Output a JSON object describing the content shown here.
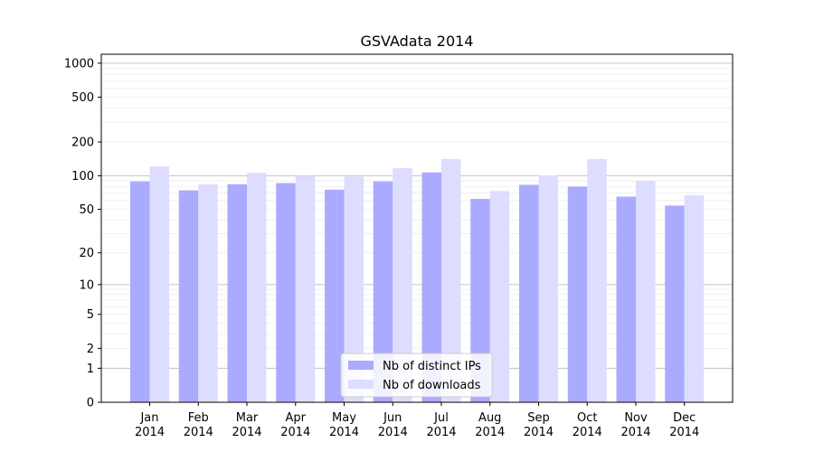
{
  "chart_data": {
    "type": "bar",
    "title": "GSVAdata 2014",
    "xlabel": "",
    "ylabel": "",
    "yscale": "log1p",
    "ylim": [
      0,
      1200
    ],
    "yticks": [
      0,
      1,
      2,
      5,
      10,
      20,
      50,
      100,
      200,
      500,
      1000
    ],
    "categories": [
      "Jan\n2014",
      "Feb\n2014",
      "Mar\n2014",
      "Apr\n2014",
      "May\n2014",
      "Jun\n2014",
      "Jul\n2014",
      "Aug\n2014",
      "Sep\n2014",
      "Oct\n2014",
      "Nov\n2014",
      "Dec\n2014"
    ],
    "series": [
      {
        "name": "Nb of distinct IPs",
        "color": "#aaaaff",
        "values": [
          89,
          74,
          84,
          86,
          75,
          89,
          107,
          62,
          83,
          80,
          65,
          54
        ]
      },
      {
        "name": "Nb of downloads",
        "color": "#ddddff",
        "values": [
          121,
          84,
          106,
          100,
          98,
          117,
          141,
          73,
          101,
          141,
          90,
          67
        ]
      }
    ],
    "grid": true,
    "legend": "bottom-center"
  }
}
